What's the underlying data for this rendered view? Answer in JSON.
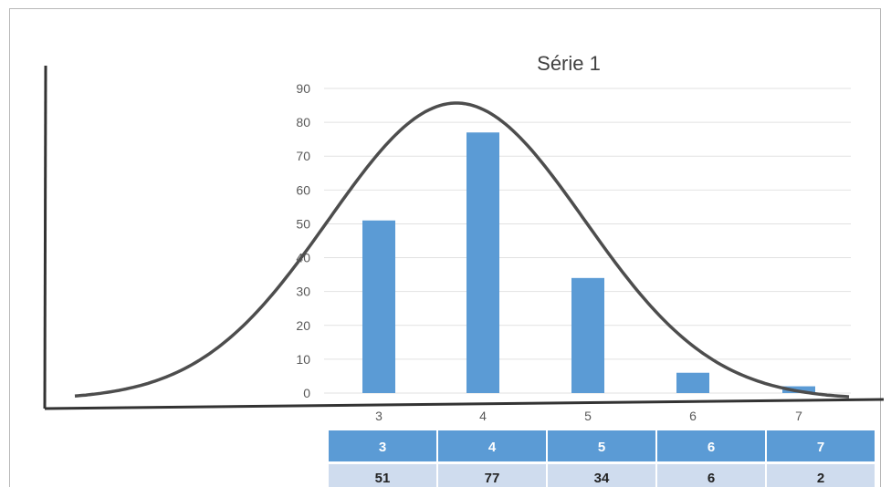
{
  "chart_data": {
    "type": "bar",
    "title": "Série 1",
    "categories": [
      "3",
      "4",
      "5",
      "6",
      "7"
    ],
    "values": [
      51,
      77,
      34,
      6,
      2
    ],
    "ylim": [
      0,
      90
    ],
    "yticks": [
      0,
      10,
      20,
      30,
      40,
      50,
      60,
      70,
      80,
      90
    ],
    "grid": true,
    "overlay": "bell-curve",
    "colors": {
      "bar": "#5b9bd5",
      "table_header": "#5b9bd5",
      "table_row": "#cfdcee",
      "curve": "#4d4d4d",
      "grid": "#e2e2e2"
    }
  },
  "table": {
    "headers": [
      "3",
      "4",
      "5",
      "6",
      "7"
    ],
    "values": [
      "51",
      "77",
      "34",
      "6",
      "2"
    ]
  }
}
